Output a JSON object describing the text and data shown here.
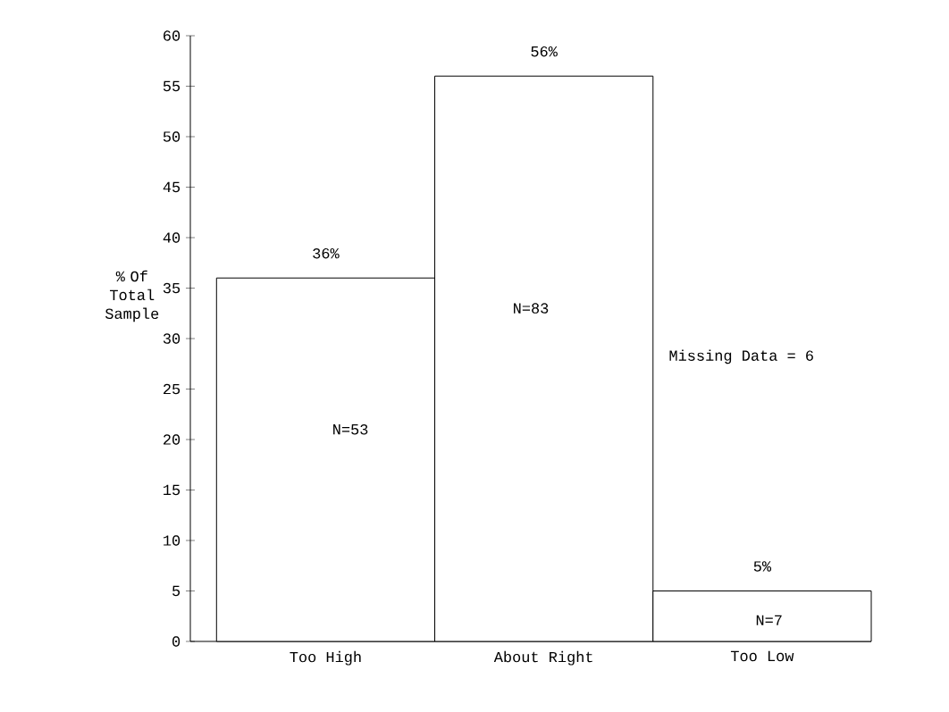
{
  "chart_data": {
    "type": "bar",
    "ylabel": "% Of Total Sample",
    "categories": [
      "Too High",
      "About Right",
      "Too Low"
    ],
    "values": [
      36,
      56,
      5
    ],
    "color": "#ffffff",
    "value_labels": [
      "36%",
      "56%",
      "5%"
    ],
    "ylim": [
      0,
      60
    ],
    "yticks": [
      0,
      5,
      10,
      15,
      20,
      25,
      30,
      35,
      40,
      45,
      50,
      55,
      60
    ],
    "annotations": [
      "N=53",
      "N=83",
      "N=7",
      "Missing Data = 6"
    ]
  }
}
